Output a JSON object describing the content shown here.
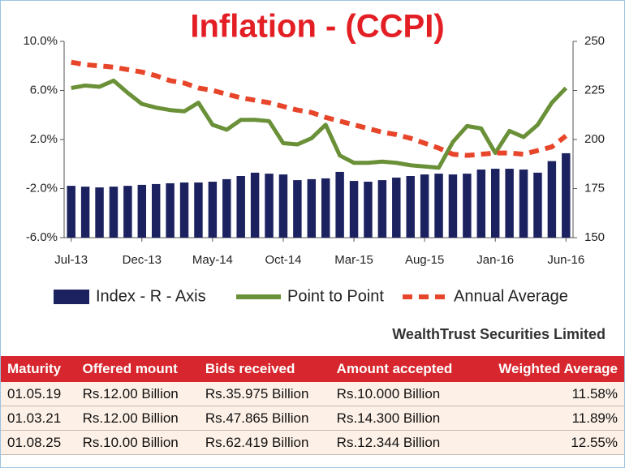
{
  "chart_data": {
    "type": "bar-line",
    "title": "Inflation - (CCPI)",
    "categories": [
      "Jul-13",
      null,
      null,
      null,
      null,
      "Dec-13",
      null,
      null,
      null,
      null,
      "May-14",
      null,
      null,
      null,
      null,
      "Oct-14",
      null,
      null,
      null,
      null,
      "Mar-15",
      null,
      null,
      null,
      null,
      "Aug-15",
      null,
      null,
      null,
      null,
      "Jan-16",
      null,
      null,
      null,
      null,
      "Jun-16"
    ],
    "ylim": [
      -6,
      10
    ],
    "yticks": [
      {
        "value": -6,
        "label": "-6.0%"
      },
      {
        "value": -2,
        "label": "-2.0%"
      },
      {
        "value": 2,
        "label": "2.0%"
      },
      {
        "value": 6,
        "label": "6.0%"
      },
      {
        "value": 10,
        "label": "10.0%"
      }
    ],
    "y2lim": [
      150,
      250
    ],
    "y2ticks": [
      150,
      175,
      200,
      225,
      250
    ],
    "series": [
      {
        "name": "Index - R - Axis",
        "type": "bar",
        "axis": "y2",
        "color": "#1c2160",
        "values": [
          176.4,
          176.0,
          175.6,
          176.0,
          176.4,
          176.9,
          177.3,
          177.7,
          178.1,
          178.1,
          178.5,
          179.8,
          181.4,
          183.1,
          182.6,
          182.2,
          179.3,
          179.8,
          180.2,
          183.5,
          178.9,
          178.5,
          179.3,
          180.6,
          181.4,
          182.2,
          182.6,
          182.2,
          182.6,
          184.7,
          185.1,
          185.1,
          184.7,
          183.1,
          189.0,
          193.0
        ]
      },
      {
        "name": "Point to Point",
        "type": "line",
        "color": "#6a9038",
        "values": [
          6.2,
          6.4,
          6.3,
          6.8,
          5.8,
          4.9,
          4.6,
          4.4,
          4.3,
          5.0,
          3.2,
          2.8,
          3.6,
          3.6,
          3.5,
          1.7,
          1.6,
          2.1,
          3.2,
          0.7,
          0.1,
          0.1,
          0.2,
          0.1,
          -0.1,
          -0.2,
          -0.3,
          1.8,
          3.1,
          2.9,
          0.9,
          2.7,
          2.2,
          3.2,
          5.0,
          6.2
        ]
      },
      {
        "name": "Annual Average",
        "type": "dashed-line",
        "color": "#e8462b",
        "values": [
          8.3,
          8.1,
          8.0,
          7.9,
          7.7,
          7.5,
          7.2,
          6.8,
          6.6,
          6.2,
          6.0,
          5.7,
          5.4,
          5.2,
          5.0,
          4.7,
          4.4,
          4.2,
          3.8,
          3.5,
          3.2,
          2.9,
          2.6,
          2.4,
          2.1,
          1.7,
          1.3,
          0.8,
          0.7,
          0.8,
          0.9,
          0.9,
          0.8,
          1.1,
          1.4,
          2.3
        ]
      }
    ]
  },
  "credit": "WealthTrust Securities Limited",
  "table": {
    "header": [
      "Maturity",
      "Offered mount",
      "Bids received",
      "Amount accepted",
      "Weighted Average"
    ],
    "rows": [
      [
        "01.05.19",
        "Rs.12.00 Billion",
        "Rs.35.975 Billion",
        "Rs.10.000 Billion",
        "11.58%"
      ],
      [
        "01.03.21",
        "Rs.12.00 Billion",
        "Rs.47.865 Billion",
        "Rs.14.300 Billion",
        "11.89%"
      ],
      [
        "01.08.25",
        "Rs.10.00 Billion",
        "Rs.62.419 Billion",
        "Rs.12.344 Billion",
        "12.55%"
      ]
    ]
  }
}
